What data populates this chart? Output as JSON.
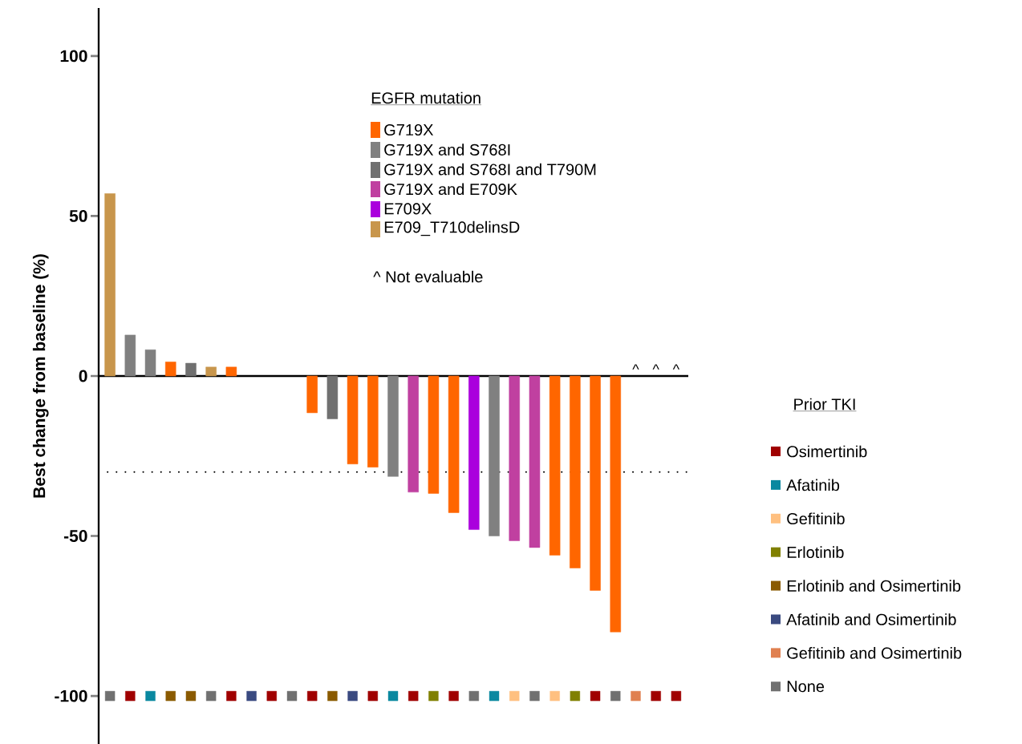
{
  "chart_data": {
    "type": "bar",
    "ylabel": "Best change from baseline (%)",
    "legend_title": "EGFR mutation",
    "categories": [
      null,
      null,
      null,
      null,
      null,
      null,
      null,
      null,
      null,
      null,
      null,
      null,
      null,
      null,
      null,
      null,
      null,
      null,
      null,
      null,
      null,
      null,
      null,
      null,
      null,
      null,
      null,
      null,
      null
    ],
    "series": [
      {
        "name": "G719X",
        "color": "#ff6600",
        "values": [
          null,
          null,
          null,
          4.4,
          null,
          null,
          2.8,
          null,
          null,
          null,
          -11.5,
          null,
          -27.5,
          -28.5,
          null,
          null,
          -36.7,
          -42.7,
          null,
          null,
          null,
          null,
          -56,
          -60,
          -67,
          -80,
          null,
          null,
          null
        ]
      },
      {
        "name": "G719X and S768I",
        "color": "#808080",
        "values": [
          null,
          12.8,
          8.2,
          null,
          null,
          null,
          null,
          null,
          null,
          null,
          null,
          null,
          null,
          null,
          -31.4,
          null,
          null,
          null,
          null,
          -50,
          null,
          null,
          null,
          null,
          null,
          null,
          null,
          null,
          null
        ]
      },
      {
        "name": "G719X and S768I and T790M",
        "color": "#707070",
        "values": [
          null,
          null,
          null,
          null,
          4.0,
          null,
          null,
          null,
          null,
          null,
          null,
          -13.4,
          null,
          null,
          null,
          null,
          null,
          null,
          null,
          null,
          null,
          null,
          null,
          null,
          null,
          null,
          null,
          null,
          null
        ]
      },
      {
        "name": "G719X and E709K",
        "color": "#c040a0",
        "values": [
          null,
          null,
          null,
          null,
          null,
          null,
          null,
          null,
          null,
          null,
          null,
          null,
          null,
          null,
          null,
          -36.3,
          null,
          null,
          null,
          null,
          -51.5,
          -53.6,
          null,
          null,
          null,
          null,
          null,
          null,
          null
        ]
      },
      {
        "name": "E709X",
        "color": "#aa00dd",
        "values": [
          null,
          null,
          null,
          null,
          null,
          null,
          null,
          null,
          null,
          null,
          null,
          null,
          null,
          null,
          null,
          null,
          null,
          null,
          -48,
          null,
          null,
          null,
          null,
          null,
          null,
          null,
          null,
          null,
          null
        ]
      },
      {
        "name": "E709_T710delinsD",
        "color": "#c8964c",
        "values": [
          57,
          null,
          null,
          null,
          null,
          2.8,
          null,
          null,
          null,
          null,
          null,
          null,
          null,
          null,
          null,
          null,
          null,
          null,
          null,
          null,
          null,
          null,
          null,
          null,
          null,
          null,
          null,
          null,
          null
        ]
      },
      {
        "name": "Osimertinib",
        "type": "scatter",
        "color": "#a00000",
        "values": [
          null,
          -100,
          null,
          null,
          null,
          null,
          -100,
          null,
          -100,
          null,
          -100,
          null,
          null,
          -100,
          null,
          -100,
          null,
          -100,
          null,
          null,
          null,
          null,
          null,
          null,
          -100,
          null,
          null,
          -100,
          -100
        ]
      },
      {
        "name": "Afatinib",
        "type": "scatter",
        "color": "#0a88a0",
        "values": [
          null,
          null,
          -100,
          null,
          null,
          null,
          null,
          null,
          null,
          null,
          null,
          null,
          null,
          null,
          -100,
          null,
          null,
          null,
          null,
          -100,
          null,
          null,
          null,
          null,
          null,
          null,
          null,
          null,
          null
        ]
      },
      {
        "name": "Gefitinib",
        "type": "scatter",
        "color": "#ffc080",
        "values": [
          null,
          null,
          null,
          null,
          null,
          null,
          null,
          null,
          null,
          null,
          null,
          null,
          null,
          null,
          null,
          null,
          null,
          null,
          null,
          null,
          -100,
          null,
          -100,
          null,
          null,
          null,
          null,
          null,
          null
        ]
      },
      {
        "name": "Erlotinib",
        "type": "scatter",
        "color": "#808000",
        "values": [
          null,
          null,
          null,
          null,
          null,
          null,
          null,
          null,
          null,
          null,
          null,
          null,
          null,
          null,
          null,
          null,
          -100,
          null,
          null,
          null,
          null,
          null,
          null,
          -100,
          null,
          null,
          null,
          null,
          null
        ]
      },
      {
        "name": "Erlotinib and Osimertinib",
        "type": "scatter",
        "color": "#8a5a00",
        "values": [
          null,
          null,
          null,
          -100,
          -100,
          null,
          null,
          null,
          null,
          null,
          null,
          -100,
          null,
          null,
          null,
          null,
          null,
          null,
          null,
          null,
          null,
          null,
          null,
          null,
          null,
          null,
          null,
          null,
          null
        ]
      },
      {
        "name": "Afatinib and Osimertinib",
        "type": "scatter",
        "color": "#3a4a80",
        "values": [
          null,
          null,
          null,
          null,
          null,
          null,
          null,
          -100,
          null,
          null,
          null,
          null,
          -100,
          null,
          null,
          null,
          null,
          null,
          null,
          null,
          null,
          null,
          null,
          null,
          null,
          null,
          null,
          null,
          null
        ]
      },
      {
        "name": "Gefitinib and Osimertinib",
        "type": "scatter",
        "color": "#e08050",
        "values": [
          null,
          null,
          null,
          null,
          null,
          null,
          null,
          null,
          null,
          null,
          null,
          null,
          null,
          null,
          null,
          null,
          null,
          null,
          null,
          null,
          null,
          null,
          null,
          null,
          null,
          null,
          -100,
          null,
          null
        ]
      },
      {
        "name": "None",
        "type": "scatter",
        "color": "#707070",
        "values": [
          -100,
          null,
          null,
          null,
          null,
          -100,
          null,
          null,
          null,
          -100,
          null,
          null,
          null,
          null,
          null,
          null,
          null,
          null,
          -100,
          null,
          null,
          -100,
          null,
          null,
          null,
          -100,
          null,
          null,
          null
        ]
      }
    ],
    "ylim": [
      -115,
      115
    ],
    "yticks": [
      -100,
      -50,
      0,
      50,
      100
    ],
    "tick_labels": "y",
    "marker": "square",
    "legend": "right",
    "ref_lines": [
      {
        "axis": "y",
        "value": -30,
        "line_style": "dotted"
      }
    ],
    "annotations": [
      "Prior TKI",
      "^ Not evaluable",
      "^",
      "^",
      "^"
    ]
  }
}
